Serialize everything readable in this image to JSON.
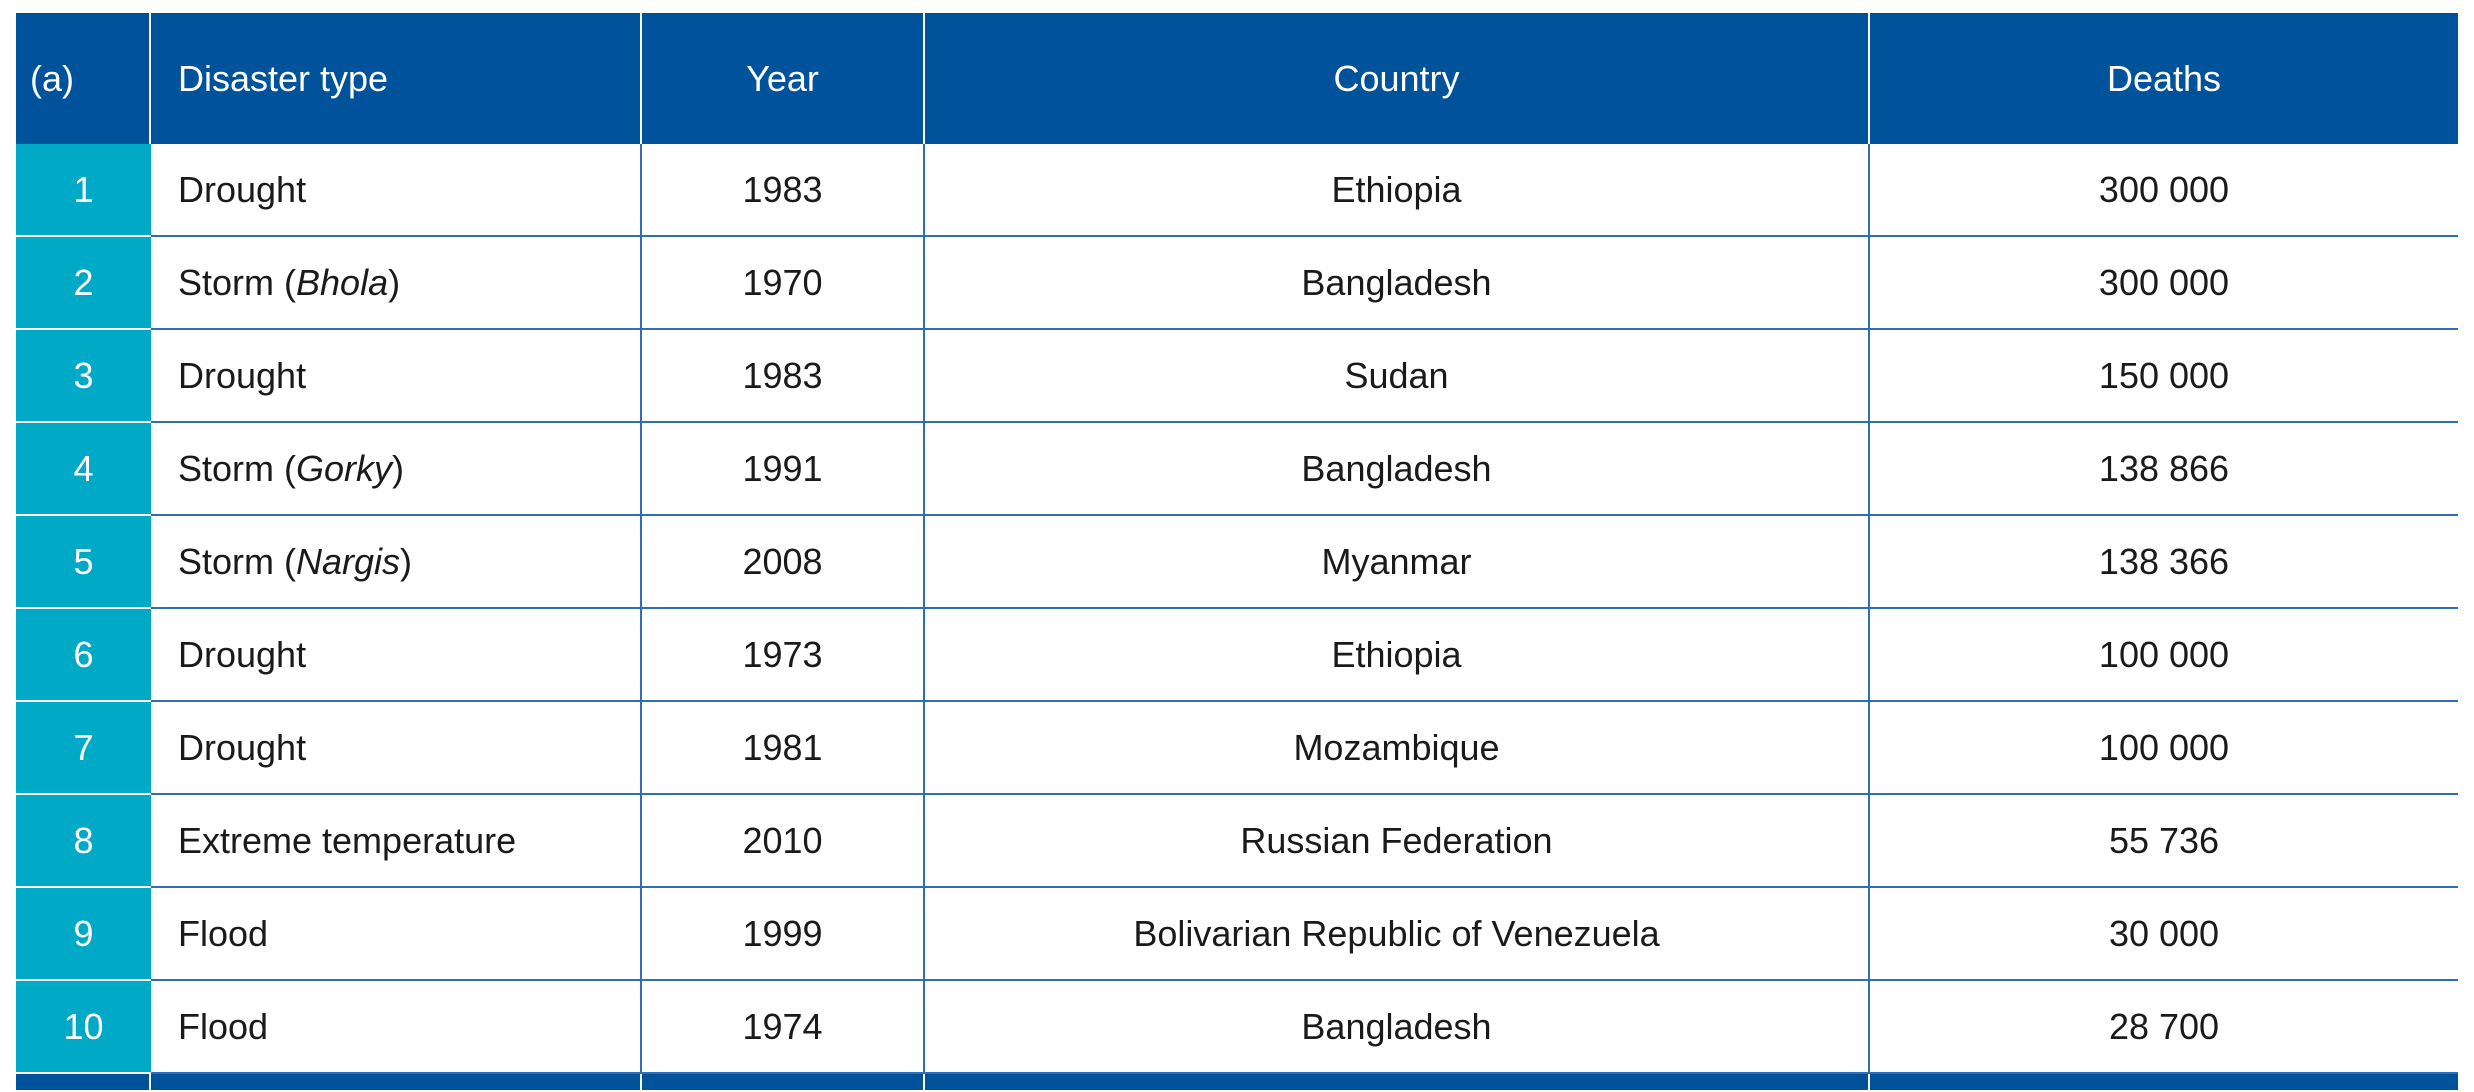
{
  "table": {
    "header": [
      "(a)",
      "Disaster type",
      "Year",
      "Country",
      "Deaths"
    ],
    "rows": [
      [
        "1",
        [
          "Drought"
        ],
        "1983",
        "Ethiopia",
        "300 000"
      ],
      [
        "2",
        [
          "Storm (",
          "Bhola",
          ")"
        ],
        "1970",
        "Bangladesh",
        "300 000"
      ],
      [
        "3",
        [
          "Drought"
        ],
        "1983",
        "Sudan",
        "150 000"
      ],
      [
        "4",
        [
          "Storm (",
          "Gorky",
          ")"
        ],
        "1991",
        "Bangladesh",
        "138 866"
      ],
      [
        "5",
        [
          "Storm (",
          "Nargis",
          ")"
        ],
        "2008",
        "Myanmar",
        "138 366"
      ],
      [
        "6",
        [
          "Drought"
        ],
        "1973",
        "Ethiopia",
        "100 000"
      ],
      [
        "7",
        [
          "Drought"
        ],
        "1981",
        "Mozambique",
        "100 000"
      ],
      [
        "8",
        [
          "Extreme temperature"
        ],
        "2010",
        "Russian Federation",
        "55 736"
      ],
      [
        "9",
        [
          "Flood"
        ],
        "1999",
        "Bolivarian Republic of Venezuela",
        "30 000"
      ],
      [
        "10",
        [
          "Flood"
        ],
        "1974",
        "Bangladesh",
        "28 700"
      ]
    ]
  }
}
